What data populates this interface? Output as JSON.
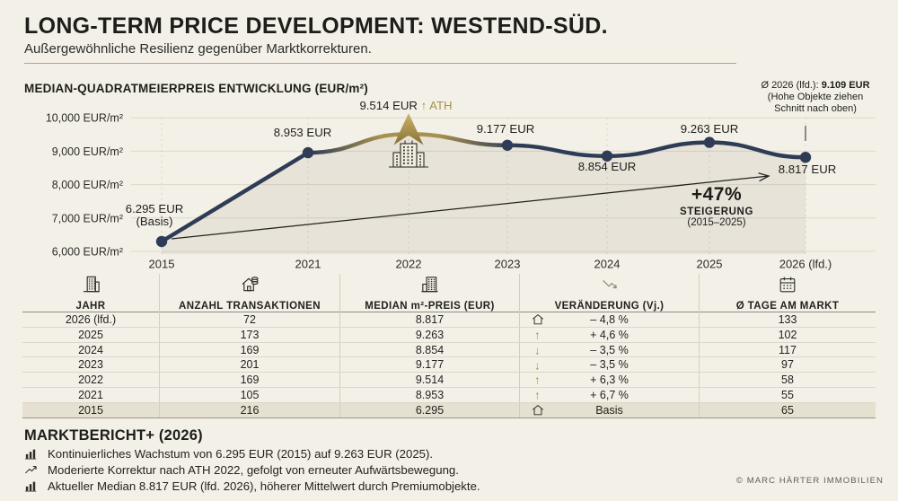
{
  "header": {
    "title": "LONG-TERM PRICE DEVELOPMENT: WESTEND-SÜD.",
    "subtitle": "Außergewöhnliche Resilienz gegenüber Marktkorrekturen."
  },
  "chart": {
    "section_title": "MEDIAN-QUADRATMEIERPREIS ENTWICKLUNG (EUR/m²)",
    "avg_prefix": "Ø 2026 (lfd.):",
    "avg_value": "9.109 EUR",
    "avg_note2": "(Hohe Objekte ziehen",
    "avg_note3": "Schnitt nach oben)",
    "growth_pct": "+47%",
    "growth_label": "STEIGERUNG",
    "growth_range": "(2015–2025)"
  },
  "chart_data": {
    "type": "line",
    "title": "MEDIAN-QUADRATMEIERPREIS ENTWICKLUNG (EUR/m²)",
    "x": [
      "2015",
      "2021",
      "2022",
      "2023",
      "2024",
      "2025",
      "2026 (lfd.)"
    ],
    "values": [
      6295,
      8953,
      9514,
      9177,
      8854,
      9263,
      8817
    ],
    "point_labels": [
      "6.295 EUR",
      "8.953 EUR",
      "9.514 EUR",
      "9.177 EUR",
      "8.854 EUR",
      "9.263 EUR",
      "8.817 EUR"
    ],
    "point_sublabel_basis": "(Basis)",
    "point_sublabel_ath": "↑ ATH",
    "ylim": [
      6000,
      10000
    ],
    "yticks": [
      "10,000 EUR/m²",
      "9,000 EUR/m²",
      "8,000 EUR/m²",
      "7,000 EUR/m²",
      "6,000 EUR/m²"
    ],
    "grid": true,
    "highlight_segment": "2021-2023 segment gold (ATH peak 2022)",
    "trend_annotation": "+47% STEIGERUNG (2015–2025)",
    "avg_annotation": "Ø 2026 (lfd.): 9.109 EUR (Hohe Objekte ziehen Schnitt nach oben)"
  },
  "table": {
    "columns": [
      "JAHR",
      "ANZAHL TRANSAKTIONEN",
      "MEDIAN m²-PREIS (EUR)",
      "VERÄNDERUNG (Vj.)",
      "Ø TAGE AM MARKT"
    ],
    "rows": [
      {
        "jahr": "2026 (lfd.)",
        "transaktionen": "72",
        "median": "8.817",
        "change_icon": "house",
        "veraenderung": "– 4,8 %",
        "tage": "133",
        "highlight": false
      },
      {
        "jahr": "2025",
        "transaktionen": "173",
        "median": "9.263",
        "change_icon": "up",
        "veraenderung": "+ 4,6 %",
        "tage": "102",
        "highlight": false
      },
      {
        "jahr": "2024",
        "transaktionen": "169",
        "median": "8.854",
        "change_icon": "down",
        "veraenderung": "– 3,5 %",
        "tage": "117",
        "highlight": false
      },
      {
        "jahr": "2023",
        "transaktionen": "201",
        "median": "9.177",
        "change_icon": "down",
        "veraenderung": "– 3,5 %",
        "tage": "97",
        "highlight": false
      },
      {
        "jahr": "2022",
        "transaktionen": "169",
        "median": "9.514",
        "change_icon": "up",
        "veraenderung": "+ 6,3 %",
        "tage": "58",
        "highlight": false
      },
      {
        "jahr": "2021",
        "transaktionen": "105",
        "median": "8.953",
        "change_icon": "up",
        "veraenderung": "+ 6,7 %",
        "tage": "55",
        "highlight": false
      },
      {
        "jahr": "2015",
        "transaktionen": "216",
        "median": "6.295",
        "change_icon": "house",
        "veraenderung": "Basis",
        "tage": "65",
        "highlight": true
      }
    ]
  },
  "footer": {
    "title": "MARKTBERICHT+ (2026)",
    "items": [
      {
        "icon": "bar-chart",
        "text": "Kontinuierliches Wachstum von 6.295 EUR (2015) auf 9.263 EUR (2025)."
      },
      {
        "icon": "trend-line",
        "text": "Moderierte Korrektur nach ATH 2022, gefolgt von erneuter Aufwärtsbewegung."
      },
      {
        "icon": "bar-chart",
        "text": "Aktueller Median 8.817 EUR (lfd. 2026), höherer Mittelwert durch Premiumobjekte."
      }
    ],
    "copyright": "© MARC HÄRTER IMMOBILIEN"
  },
  "colors": {
    "navy": "#2e3d55",
    "gold": "#a8914e",
    "gold_light": "#cdb46b",
    "gold_dark": "#857133",
    "background": "#f3f0e7",
    "grid": "#dcd8c9",
    "rule_red": "#96524a",
    "highlight_row": "#e5e0cf",
    "ink": "#2b2b28"
  }
}
